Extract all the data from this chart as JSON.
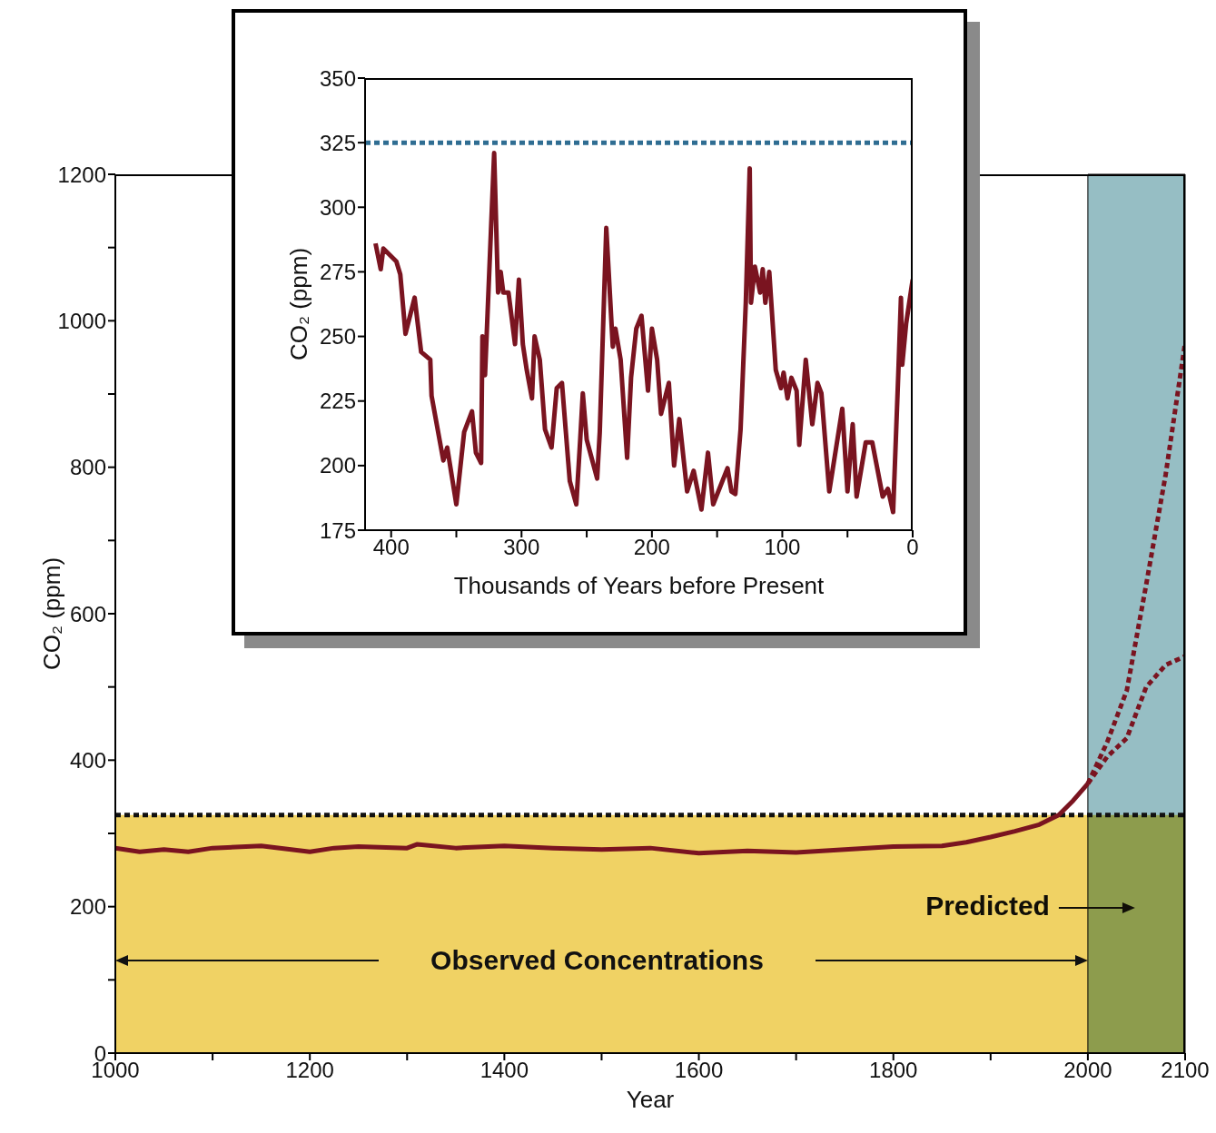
{
  "chart_data": [
    {
      "type": "line",
      "xlabel": "Year",
      "ylabel": "CO₂ (ppm)",
      "xlim": [
        1000,
        2100
      ],
      "ylim": [
        0,
        1200
      ],
      "xticks": [
        1000,
        {
          "value": 1100,
          "label": null
        },
        1200,
        {
          "value": 1300,
          "label": null
        },
        1400,
        {
          "value": 1500,
          "label": null
        },
        1600,
        {
          "value": 1700,
          "label": null
        },
        1800,
        {
          "value": 1900,
          "label": null
        },
        2000,
        2100
      ],
      "yticks": [
        0,
        {
          "value": 100,
          "label": null
        },
        200,
        {
          "value": 300,
          "label": null
        },
        400,
        {
          "value": 500,
          "label": null
        },
        600,
        {
          "value": 700,
          "label": null
        },
        800,
        {
          "value": 900,
          "label": null
        },
        1000,
        {
          "value": 1100,
          "label": null
        },
        1200
      ],
      "series": [
        {
          "color": "#7a1420",
          "line_style": "solid",
          "x": [
            1000,
            1025,
            1050,
            1075,
            1100,
            1150,
            1200,
            1225,
            1250,
            1300,
            1310,
            1350,
            1400,
            1450,
            1500,
            1550,
            1600,
            1650,
            1700,
            1750,
            1800,
            1850,
            1875,
            1900,
            1925,
            1950,
            1970,
            1985,
            2000
          ],
          "values": [
            280,
            275,
            278,
            275,
            280,
            283,
            275,
            280,
            282,
            280,
            285,
            280,
            283,
            280,
            278,
            280,
            273,
            276,
            274,
            278,
            282,
            283,
            288,
            295,
            303,
            312,
            325,
            345,
            368
          ]
        },
        {
          "color": "#7a1420",
          "line_style": "dashed",
          "x": [
            2000,
            2020,
            2040,
            2060,
            2080,
            2100
          ],
          "values": [
            368,
            425,
            495,
            640,
            790,
            970
          ]
        },
        {
          "color": "#7a1420",
          "line_style": "dashed",
          "x": [
            2000,
            2020,
            2040,
            2060,
            2080,
            2100
          ],
          "values": [
            368,
            405,
            430,
            500,
            530,
            542
          ]
        }
      ],
      "ref_lines": [
        {
          "axis": "y",
          "value": 325,
          "color": "#111111",
          "line_style": "dashed"
        }
      ],
      "bands": [
        {
          "axis": "x",
          "from": 2000,
          "to": 2100,
          "label": "Predicted",
          "color": "#96bec4"
        },
        {
          "axis": "y",
          "from": 0,
          "to": 325,
          "color": "#f0d264"
        }
      ],
      "annotations": [
        "Observed Concentrations"
      ]
    },
    {
      "type": "line",
      "xlabel": "Thousands of Years before Present",
      "ylabel": "CO₂ (ppm)",
      "xlim": [
        420,
        0
      ],
      "ylim": [
        175,
        350
      ],
      "xticks": [
        400,
        {
          "value": 350,
          "label": null
        },
        300,
        {
          "value": 250,
          "label": null
        },
        200,
        {
          "value": 150,
          "label": null
        },
        100,
        {
          "value": 50,
          "label": null
        },
        0
      ],
      "yticks": [
        175,
        200,
        225,
        250,
        275,
        300,
        325,
        350
      ],
      "series": [
        {
          "color": "#7a1420",
          "line_style": "solid",
          "x": [
            412,
            408,
            406,
            396,
            393,
            389,
            382,
            377,
            370,
            369,
            360,
            357,
            350,
            344,
            338,
            335,
            331,
            330,
            328,
            321,
            318,
            316,
            314,
            310,
            305,
            302,
            299,
            296,
            292,
            290,
            286,
            282,
            277,
            273,
            269,
            263,
            258,
            255,
            253,
            250,
            242,
            240,
            235,
            230,
            228,
            224,
            219,
            216,
            212,
            208,
            203,
            200,
            196,
            193,
            187,
            183,
            179,
            173,
            168,
            162,
            157,
            153,
            142,
            139,
            136,
            132,
            128,
            125,
            124,
            121,
            117,
            115,
            113,
            110,
            105,
            101,
            99,
            96,
            93,
            89,
            87,
            82,
            77,
            73,
            70,
            64,
            54,
            50,
            46,
            43,
            36,
            31,
            23,
            19,
            15,
            11,
            9,
            8,
            5,
            0
          ],
          "values": [
            286,
            276,
            284,
            279,
            274,
            251,
            265,
            244,
            241,
            227,
            202,
            207,
            185,
            213,
            221,
            205,
            201,
            250,
            235,
            321,
            267,
            275,
            267,
            267,
            247,
            272,
            247,
            237,
            226,
            250,
            241,
            214,
            207,
            230,
            232,
            194,
            185,
            210,
            228,
            210,
            195,
            213,
            292,
            246,
            253,
            241,
            203,
            234,
            253,
            258,
            229,
            253,
            241,
            220,
            232,
            200,
            218,
            190,
            198,
            183,
            205,
            185,
            199,
            190,
            189,
            214,
            263,
            315,
            263,
            277,
            267,
            276,
            263,
            275,
            237,
            230,
            236,
            226,
            234,
            229,
            208,
            241,
            216,
            232,
            228,
            190,
            222,
            190,
            216,
            188,
            209,
            209,
            188,
            191,
            182,
            236,
            265,
            239,
            255,
            272
          ]
        }
      ],
      "ref_lines": [
        {
          "axis": "y",
          "value": 325,
          "color": "#2f6d92",
          "line_style": "dashed"
        }
      ]
    }
  ]
}
